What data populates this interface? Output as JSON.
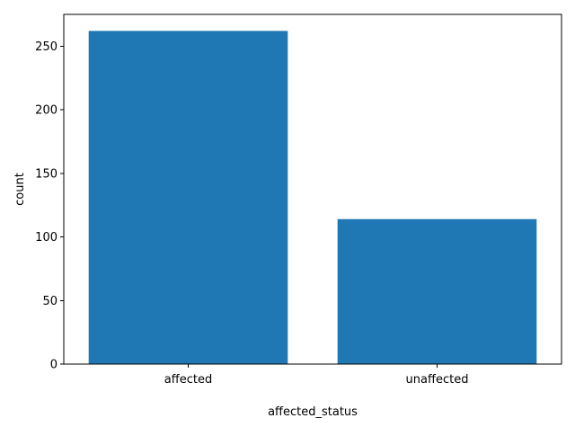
{
  "chart_data": {
    "type": "bar",
    "title": "",
    "xlabel": "affected_status",
    "ylabel": "count",
    "categories": [
      "affected",
      "unaffected"
    ],
    "values": [
      262,
      114
    ],
    "ylim": [
      0,
      275
    ],
    "yticks": [
      0,
      50,
      100,
      150,
      200,
      250
    ],
    "grid": false,
    "legend": "none",
    "colors": {
      "bar": "#1f77b4"
    }
  }
}
